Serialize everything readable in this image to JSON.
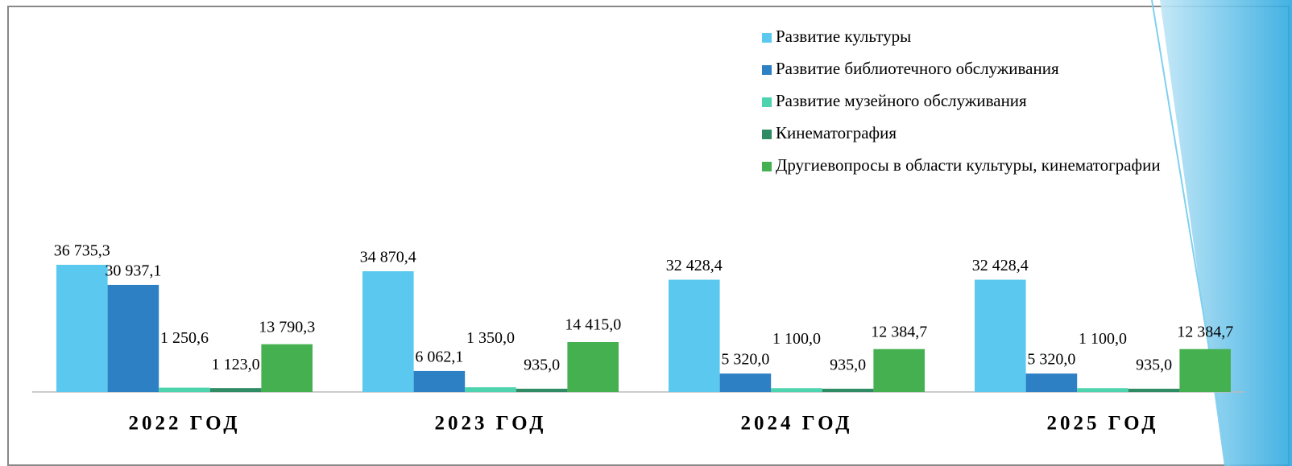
{
  "chart_data": {
    "type": "bar",
    "categories": [
      "2022 ГОД",
      "2023 ГОД",
      "2024 ГОД",
      "2025 ГОД"
    ],
    "series": [
      {
        "name": "Развитие культуры",
        "color": "#5bc9ef",
        "values": [
          36735.3,
          34870.4,
          32428.4,
          32428.4
        ],
        "value_labels": [
          "36 735,3",
          "34 870,4",
          "32 428,4",
          "32 428,4"
        ]
      },
      {
        "name": "Развитие библиотечного обслуживания",
        "color": "#2e80c4",
        "values": [
          30937.1,
          6062.1,
          5320.0,
          5320.0
        ],
        "value_labels": [
          "30 937,1",
          "6 062,1",
          "5 320,0",
          "5 320,0"
        ]
      },
      {
        "name": "Развитие музейного обслуживания",
        "color": "#4dd3ae",
        "values": [
          1250.6,
          1350.0,
          1100.0,
          1100.0
        ],
        "value_labels": [
          "1 250,6",
          "1 350,0",
          "1 100,0",
          "1 100,0"
        ]
      },
      {
        "name": "Кинематография",
        "color": "#2e8b63",
        "values": [
          1123.0,
          935.0,
          935.0,
          935.0
        ],
        "value_labels": [
          "1 123,0",
          "935,0",
          "935,0",
          "935,0"
        ]
      },
      {
        "name": "Другиевопросы в области культуры, кинематографии",
        "color": "#45b050",
        "values": [
          13790.3,
          14415.0,
          12384.7,
          12384.7
        ],
        "value_labels": [
          "13 790,3",
          "14 415,0",
          "12 384,7",
          "12 384,7"
        ]
      }
    ],
    "legend": "top-right"
  }
}
